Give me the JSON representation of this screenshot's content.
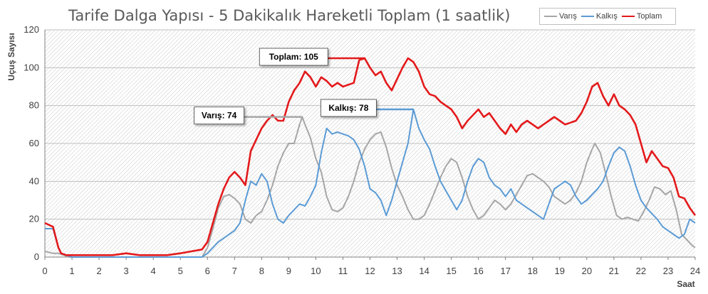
{
  "chart_data": {
    "type": "line",
    "title": "Tarife Dalga Yapısı - 5 Dakikalık Hareketli Toplam (1 saatlik)",
    "xlabel": "Saat",
    "ylabel": "Uçuş Sayısı",
    "xlim": [
      0,
      24
    ],
    "ylim": [
      0,
      120
    ],
    "x_ticks": [
      0,
      1,
      2,
      3,
      4,
      5,
      6,
      7,
      8,
      9,
      10,
      11,
      12,
      13,
      14,
      15,
      16,
      17,
      18,
      19,
      20,
      21,
      22,
      23,
      24
    ],
    "y_ticks": [
      0,
      20,
      40,
      60,
      80,
      100,
      120
    ],
    "grid": true,
    "legend_position": "top-right",
    "series": [
      {
        "name": "Varış",
        "color": "#a6a6a6",
        "points": [
          [
            0,
            3
          ],
          [
            0.3,
            2
          ],
          [
            0.5,
            2
          ],
          [
            0.7,
            1
          ],
          [
            0.9,
            0
          ],
          [
            1,
            0
          ],
          [
            2,
            0
          ],
          [
            3,
            0
          ],
          [
            4,
            0
          ],
          [
            5,
            0
          ],
          [
            5.8,
            0
          ],
          [
            6,
            5
          ],
          [
            6.2,
            15
          ],
          [
            6.4,
            26
          ],
          [
            6.6,
            32
          ],
          [
            6.8,
            33
          ],
          [
            7,
            31
          ],
          [
            7.2,
            28
          ],
          [
            7.4,
            20
          ],
          [
            7.6,
            18
          ],
          [
            7.8,
            22
          ],
          [
            8,
            24
          ],
          [
            8.2,
            30
          ],
          [
            8.4,
            38
          ],
          [
            8.6,
            48
          ],
          [
            8.8,
            55
          ],
          [
            9,
            60
          ],
          [
            9.2,
            60
          ],
          [
            9.4,
            70
          ],
          [
            9.5,
            74
          ],
          [
            9.6,
            70
          ],
          [
            9.8,
            63
          ],
          [
            10,
            52
          ],
          [
            10.2,
            45
          ],
          [
            10.4,
            32
          ],
          [
            10.6,
            25
          ],
          [
            10.8,
            24
          ],
          [
            11,
            26
          ],
          [
            11.2,
            32
          ],
          [
            11.4,
            40
          ],
          [
            11.6,
            50
          ],
          [
            11.8,
            57
          ],
          [
            12,
            62
          ],
          [
            12.2,
            65
          ],
          [
            12.4,
            66
          ],
          [
            12.6,
            58
          ],
          [
            12.8,
            47
          ],
          [
            13,
            38
          ],
          [
            13.2,
            32
          ],
          [
            13.4,
            25
          ],
          [
            13.6,
            20
          ],
          [
            13.8,
            20
          ],
          [
            14,
            22
          ],
          [
            14.2,
            28
          ],
          [
            14.4,
            35
          ],
          [
            14.6,
            42
          ],
          [
            14.8,
            48
          ],
          [
            15,
            52
          ],
          [
            15.2,
            50
          ],
          [
            15.4,
            42
          ],
          [
            15.6,
            32
          ],
          [
            15.8,
            25
          ],
          [
            16,
            20
          ],
          [
            16.2,
            22
          ],
          [
            16.4,
            26
          ],
          [
            16.6,
            30
          ],
          [
            16.8,
            28
          ],
          [
            17,
            25
          ],
          [
            17.2,
            28
          ],
          [
            17.4,
            33
          ],
          [
            17.6,
            38
          ],
          [
            17.8,
            43
          ],
          [
            18,
            44
          ],
          [
            18.2,
            42
          ],
          [
            18.4,
            40
          ],
          [
            18.6,
            37
          ],
          [
            18.8,
            32
          ],
          [
            19,
            30
          ],
          [
            19.2,
            28
          ],
          [
            19.4,
            30
          ],
          [
            19.6,
            34
          ],
          [
            19.8,
            40
          ],
          [
            20,
            50
          ],
          [
            20.2,
            57
          ],
          [
            20.3,
            60
          ],
          [
            20.5,
            55
          ],
          [
            20.7,
            44
          ],
          [
            20.9,
            32
          ],
          [
            21.1,
            22
          ],
          [
            21.3,
            20
          ],
          [
            21.5,
            21
          ],
          [
            21.7,
            20
          ],
          [
            21.9,
            19
          ],
          [
            22.1,
            24
          ],
          [
            22.3,
            30
          ],
          [
            22.5,
            37
          ],
          [
            22.7,
            36
          ],
          [
            22.9,
            33
          ],
          [
            23.1,
            35
          ],
          [
            23.3,
            25
          ],
          [
            23.5,
            12
          ],
          [
            23.7,
            9
          ],
          [
            23.9,
            6
          ],
          [
            24,
            5
          ]
        ]
      },
      {
        "name": "Kalkış",
        "color": "#5b9bd5",
        "points": [
          [
            0,
            15
          ],
          [
            0.3,
            15
          ],
          [
            0.5,
            5
          ],
          [
            0.6,
            2
          ],
          [
            0.8,
            1
          ],
          [
            1,
            0
          ],
          [
            2,
            0
          ],
          [
            3,
            0
          ],
          [
            4,
            0
          ],
          [
            5,
            0
          ],
          [
            5.8,
            0
          ],
          [
            6,
            2
          ],
          [
            6.2,
            5
          ],
          [
            6.4,
            8
          ],
          [
            6.6,
            10
          ],
          [
            6.8,
            12
          ],
          [
            7,
            14
          ],
          [
            7.2,
            18
          ],
          [
            7.4,
            30
          ],
          [
            7.6,
            40
          ],
          [
            7.8,
            38
          ],
          [
            8,
            44
          ],
          [
            8.2,
            40
          ],
          [
            8.4,
            28
          ],
          [
            8.6,
            20
          ],
          [
            8.8,
            18
          ],
          [
            9,
            22
          ],
          [
            9.2,
            25
          ],
          [
            9.4,
            28
          ],
          [
            9.6,
            27
          ],
          [
            9.8,
            32
          ],
          [
            10,
            38
          ],
          [
            10.2,
            55
          ],
          [
            10.4,
            68
          ],
          [
            10.6,
            65
          ],
          [
            10.8,
            66
          ],
          [
            11,
            65
          ],
          [
            11.2,
            64
          ],
          [
            11.4,
            62
          ],
          [
            11.6,
            57
          ],
          [
            11.8,
            48
          ],
          [
            12,
            36
          ],
          [
            12.2,
            34
          ],
          [
            12.4,
            30
          ],
          [
            12.6,
            22
          ],
          [
            12.8,
            30
          ],
          [
            13,
            40
          ],
          [
            13.2,
            50
          ],
          [
            13.4,
            60
          ],
          [
            13.6,
            78
          ],
          [
            13.8,
            68
          ],
          [
            14,
            62
          ],
          [
            14.2,
            57
          ],
          [
            14.4,
            48
          ],
          [
            14.6,
            40
          ],
          [
            14.8,
            35
          ],
          [
            15,
            30
          ],
          [
            15.2,
            25
          ],
          [
            15.4,
            30
          ],
          [
            15.6,
            40
          ],
          [
            15.8,
            48
          ],
          [
            16,
            52
          ],
          [
            16.2,
            50
          ],
          [
            16.4,
            42
          ],
          [
            16.6,
            38
          ],
          [
            16.8,
            36
          ],
          [
            17,
            32
          ],
          [
            17.2,
            36
          ],
          [
            17.4,
            30
          ],
          [
            17.6,
            28
          ],
          [
            17.8,
            26
          ],
          [
            18,
            24
          ],
          [
            18.2,
            22
          ],
          [
            18.4,
            20
          ],
          [
            18.6,
            28
          ],
          [
            18.8,
            36
          ],
          [
            19,
            38
          ],
          [
            19.2,
            40
          ],
          [
            19.4,
            38
          ],
          [
            19.6,
            32
          ],
          [
            19.8,
            28
          ],
          [
            20,
            30
          ],
          [
            20.2,
            33
          ],
          [
            20.4,
            36
          ],
          [
            20.6,
            40
          ],
          [
            20.8,
            48
          ],
          [
            21,
            55
          ],
          [
            21.2,
            58
          ],
          [
            21.4,
            56
          ],
          [
            21.6,
            48
          ],
          [
            21.8,
            38
          ],
          [
            22,
            30
          ],
          [
            22.2,
            26
          ],
          [
            22.4,
            23
          ],
          [
            22.6,
            20
          ],
          [
            22.8,
            16
          ],
          [
            23,
            14
          ],
          [
            23.2,
            12
          ],
          [
            23.4,
            10
          ],
          [
            23.6,
            12
          ],
          [
            23.8,
            20
          ],
          [
            24,
            18
          ]
        ]
      },
      {
        "name": "Toplam",
        "color": "#e31a1c",
        "points": [
          [
            0,
            18
          ],
          [
            0.3,
            16
          ],
          [
            0.5,
            5
          ],
          [
            0.6,
            2
          ],
          [
            0.8,
            1
          ],
          [
            1,
            1
          ],
          [
            2,
            1
          ],
          [
            2.5,
            1
          ],
          [
            3,
            2
          ],
          [
            3.5,
            1
          ],
          [
            4,
            1
          ],
          [
            4.5,
            1
          ],
          [
            5,
            2
          ],
          [
            5.4,
            3
          ],
          [
            5.8,
            4
          ],
          [
            6,
            8
          ],
          [
            6.2,
            18
          ],
          [
            6.4,
            28
          ],
          [
            6.6,
            36
          ],
          [
            6.8,
            42
          ],
          [
            7,
            45
          ],
          [
            7.2,
            42
          ],
          [
            7.4,
            38
          ],
          [
            7.6,
            56
          ],
          [
            7.8,
            62
          ],
          [
            8,
            68
          ],
          [
            8.2,
            72
          ],
          [
            8.4,
            75
          ],
          [
            8.6,
            72
          ],
          [
            8.8,
            72
          ],
          [
            9,
            82
          ],
          [
            9.2,
            88
          ],
          [
            9.4,
            92
          ],
          [
            9.6,
            98
          ],
          [
            9.8,
            95
          ],
          [
            10,
            90
          ],
          [
            10.2,
            95
          ],
          [
            10.4,
            93
          ],
          [
            10.6,
            90
          ],
          [
            10.8,
            92
          ],
          [
            11,
            90
          ],
          [
            11.2,
            91
          ],
          [
            11.4,
            92
          ],
          [
            11.6,
            104
          ],
          [
            11.8,
            105
          ],
          [
            12,
            100
          ],
          [
            12.2,
            96
          ],
          [
            12.4,
            98
          ],
          [
            12.6,
            92
          ],
          [
            12.8,
            88
          ],
          [
            13,
            94
          ],
          [
            13.2,
            100
          ],
          [
            13.4,
            105
          ],
          [
            13.6,
            103
          ],
          [
            13.8,
            98
          ],
          [
            14,
            90
          ],
          [
            14.2,
            86
          ],
          [
            14.4,
            85
          ],
          [
            14.6,
            82
          ],
          [
            14.8,
            80
          ],
          [
            15,
            78
          ],
          [
            15.2,
            74
          ],
          [
            15.4,
            68
          ],
          [
            15.6,
            72
          ],
          [
            15.8,
            75
          ],
          [
            16,
            78
          ],
          [
            16.2,
            74
          ],
          [
            16.4,
            76
          ],
          [
            16.6,
            72
          ],
          [
            16.8,
            68
          ],
          [
            17,
            65
          ],
          [
            17.2,
            70
          ],
          [
            17.4,
            66
          ],
          [
            17.6,
            70
          ],
          [
            17.8,
            72
          ],
          [
            18,
            70
          ],
          [
            18.2,
            68
          ],
          [
            18.4,
            70
          ],
          [
            18.6,
            72
          ],
          [
            18.8,
            74
          ],
          [
            19,
            72
          ],
          [
            19.2,
            70
          ],
          [
            19.4,
            71
          ],
          [
            19.6,
            72
          ],
          [
            19.8,
            76
          ],
          [
            20,
            82
          ],
          [
            20.2,
            90
          ],
          [
            20.4,
            92
          ],
          [
            20.6,
            85
          ],
          [
            20.8,
            80
          ],
          [
            21,
            86
          ],
          [
            21.2,
            80
          ],
          [
            21.4,
            78
          ],
          [
            21.6,
            75
          ],
          [
            21.8,
            70
          ],
          [
            22,
            60
          ],
          [
            22.2,
            50
          ],
          [
            22.4,
            56
          ],
          [
            22.6,
            52
          ],
          [
            22.8,
            48
          ],
          [
            23,
            47
          ],
          [
            23.2,
            42
          ],
          [
            23.4,
            32
          ],
          [
            23.6,
            31
          ],
          [
            23.8,
            26
          ],
          [
            24,
            22
          ]
        ]
      }
    ],
    "annotations": [
      {
        "label": "Toplam: 105",
        "series": "Toplam",
        "x_start": 11.6,
        "x_end": 11.8,
        "y": 105
      },
      {
        "label": "Kalkış: 78",
        "series": "Kalkış",
        "x_start": 13.6,
        "x_end": 13.6,
        "y": 78
      },
      {
        "label": "Varış: 74",
        "series": "Varış",
        "x_start": 9.4,
        "x_end": 9.5,
        "y": 74
      }
    ]
  }
}
